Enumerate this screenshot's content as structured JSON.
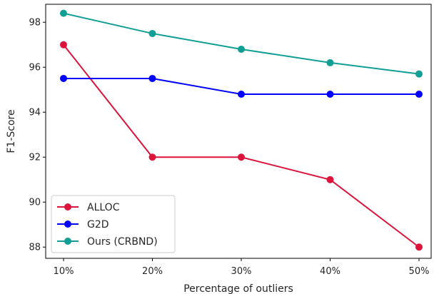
{
  "chart_data": {
    "type": "line",
    "title": "",
    "xlabel": "Percentage of outliers",
    "ylabel": "F1-Score",
    "categories": [
      "10%",
      "20%",
      "30%",
      "40%",
      "50%"
    ],
    "ylim": [
      87.5,
      98.8
    ],
    "yticks": [
      88,
      90,
      92,
      94,
      96,
      98
    ],
    "grid": false,
    "legend_position": "lower-left",
    "series": [
      {
        "name": "ALLOC",
        "color": "#dc143c",
        "values": [
          97.0,
          92.0,
          92.0,
          91.0,
          88.0
        ]
      },
      {
        "name": "G2D",
        "color": "#0000ff",
        "values": [
          95.5,
          95.5,
          94.8,
          94.8,
          94.8
        ]
      },
      {
        "name": "Ours (CRBND)",
        "color": "#119e95",
        "values": [
          98.4,
          97.5,
          96.8,
          96.2,
          95.7
        ]
      }
    ]
  }
}
